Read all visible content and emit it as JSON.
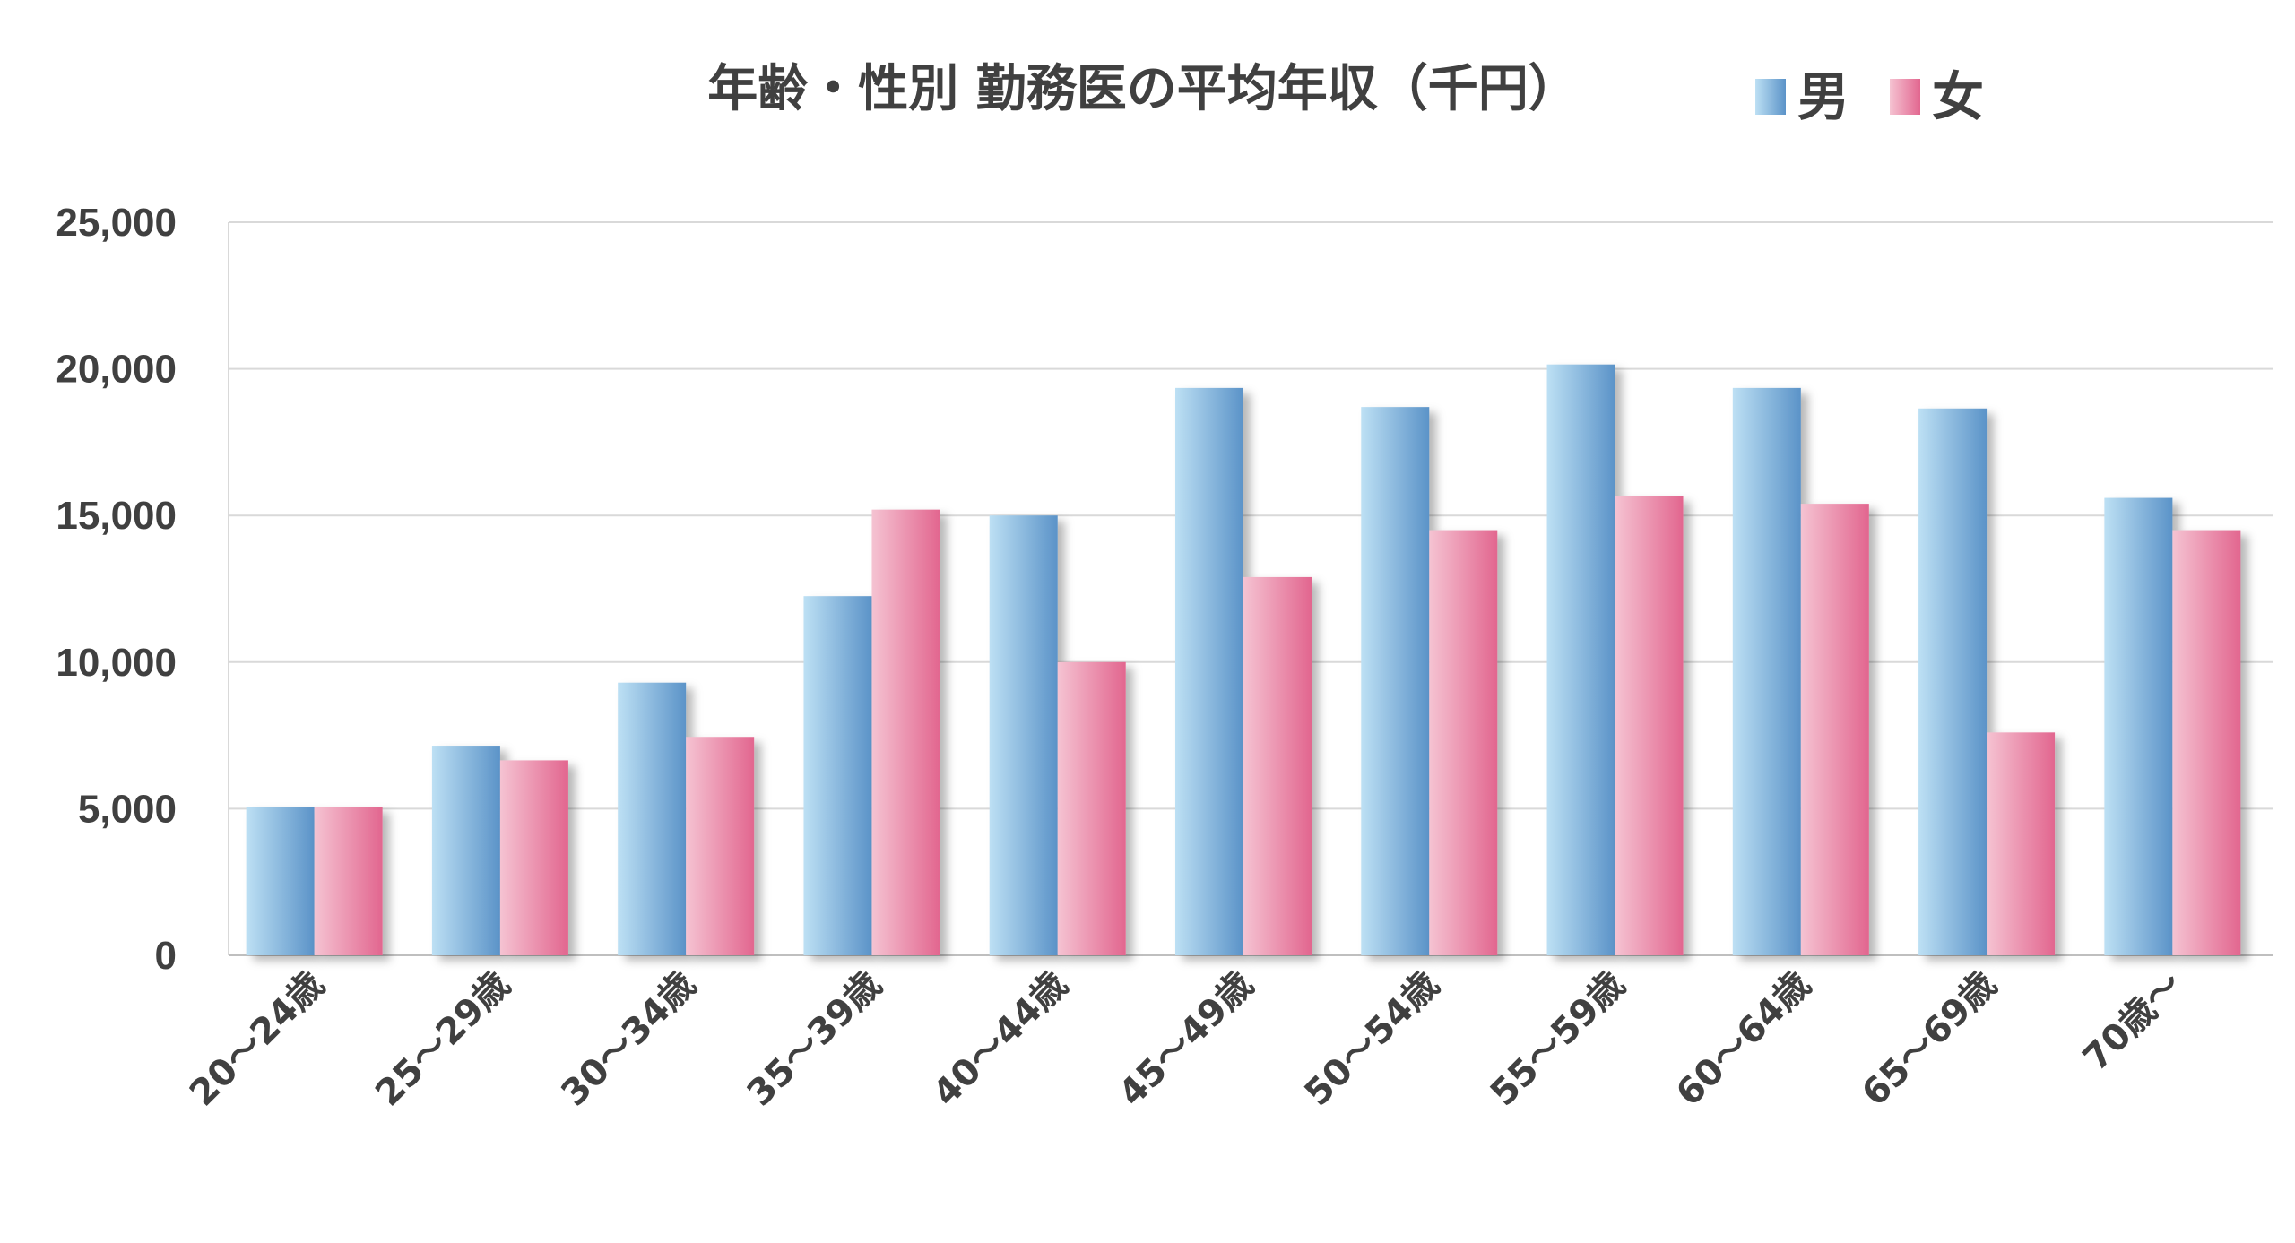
{
  "chart_data": {
    "type": "bar",
    "title": "年齢・性別 勤務医の平均年収（千円）",
    "categories": [
      "20～24歳",
      "25～29歳",
      "30～34歳",
      "35～39歳",
      "40～44歳",
      "45～49歳",
      "50～54歳",
      "55～59歳",
      "60～64歳",
      "65～69歳",
      "70歳～"
    ],
    "series": [
      {
        "name": "男",
        "values": [
          5050,
          7150,
          9300,
          12250,
          15000,
          19350,
          18700,
          20150,
          19350,
          18650,
          15600
        ],
        "color": "#5b93c8"
      },
      {
        "name": "女",
        "values": [
          5050,
          6650,
          7450,
          15200,
          10000,
          12900,
          14500,
          15650,
          15400,
          7600,
          14500
        ],
        "color": "#e2668f"
      }
    ],
    "y_ticks": [
      "0",
      "5,000",
      "10,000",
      "15,000",
      "20,000",
      "25,000"
    ],
    "ylim": [
      0,
      25000
    ],
    "legend_position": "top-right",
    "grid": true
  }
}
